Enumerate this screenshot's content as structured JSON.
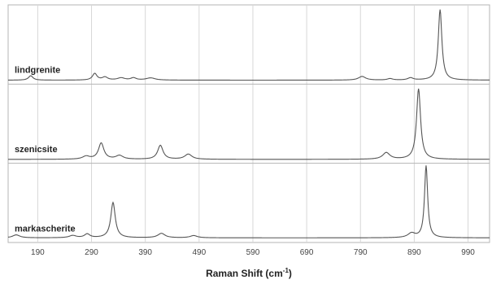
{
  "chart_data": {
    "type": "line",
    "xlabel": {
      "prefix": "Raman Shift (cm",
      "sup": "-1",
      "suffix": ")"
    },
    "xlim": [
      135,
      1030
    ],
    "xticks": [
      190,
      290,
      390,
      490,
      590,
      690,
      790,
      890,
      990
    ],
    "grid": "vertical",
    "series": [
      {
        "name": "lindgrenite",
        "baseline": 0.02,
        "ylim": [
          0,
          1
        ],
        "peaks": [
          {
            "x": 177,
            "y": 0.06,
            "w": 5
          },
          {
            "x": 296,
            "y": 0.09,
            "w": 5
          },
          {
            "x": 315,
            "y": 0.04,
            "w": 6
          },
          {
            "x": 345,
            "y": 0.03,
            "w": 8
          },
          {
            "x": 368,
            "y": 0.03,
            "w": 6
          },
          {
            "x": 400,
            "y": 0.03,
            "w": 10
          },
          {
            "x": 793,
            "y": 0.05,
            "w": 8
          },
          {
            "x": 845,
            "y": 0.02,
            "w": 6
          },
          {
            "x": 883,
            "y": 0.03,
            "w": 6
          },
          {
            "x": 938,
            "y": 0.96,
            "w": 4
          }
        ]
      },
      {
        "name": "szenicsite",
        "baseline": 0.02,
        "ylim": [
          0,
          1
        ],
        "peaks": [
          {
            "x": 280,
            "y": 0.04,
            "w": 8
          },
          {
            "x": 308,
            "y": 0.22,
            "w": 6
          },
          {
            "x": 342,
            "y": 0.05,
            "w": 8
          },
          {
            "x": 418,
            "y": 0.19,
            "w": 6
          },
          {
            "x": 470,
            "y": 0.07,
            "w": 8
          },
          {
            "x": 838,
            "y": 0.09,
            "w": 8
          },
          {
            "x": 898,
            "y": 0.96,
            "w": 4.5
          }
        ]
      },
      {
        "name": "markascherite",
        "baseline": 0.03,
        "ylim": [
          0,
          1
        ],
        "peaks": [
          {
            "x": 150,
            "y": 0.04,
            "w": 8
          },
          {
            "x": 255,
            "y": 0.03,
            "w": 8
          },
          {
            "x": 282,
            "y": 0.05,
            "w": 6
          },
          {
            "x": 330,
            "y": 0.48,
            "w": 5
          },
          {
            "x": 420,
            "y": 0.06,
            "w": 8
          },
          {
            "x": 480,
            "y": 0.03,
            "w": 8
          },
          {
            "x": 885,
            "y": 0.06,
            "w": 8
          },
          {
            "x": 912,
            "y": 0.98,
            "w": 3.5
          }
        ]
      }
    ],
    "colors": {
      "line": "#555555",
      "grid": "#d7d7d7",
      "frame": "#b5b5b5"
    }
  }
}
